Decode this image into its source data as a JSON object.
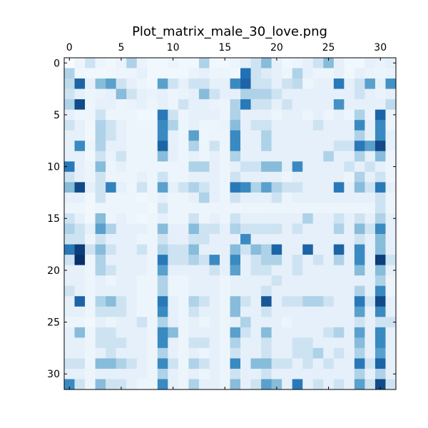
{
  "chart_data": {
    "type": "heatmap",
    "title": "Plot_matrix_male_30_love.png",
    "xlabel": "",
    "ylabel": "",
    "rows": 32,
    "cols": 32,
    "x_ticks": [
      0,
      5,
      10,
      15,
      20,
      25,
      30
    ],
    "y_ticks": [
      0,
      5,
      10,
      15,
      20,
      25,
      30
    ],
    "x_axis_position": "top",
    "colormap": "Blues",
    "color_low": "#f7fbff",
    "color_high": "#08306b",
    "value_range": [
      0,
      1
    ],
    "grid": false,
    "legend": "none",
    "values": [
      [
        0.0,
        0.06,
        0.2,
        0.06,
        0.04,
        0.08,
        0.3,
        0.08,
        0.04,
        0.04,
        0.06,
        0.04,
        0.04,
        0.3,
        0.04,
        0.04,
        0.06,
        0.1,
        0.2,
        0.4,
        0.1,
        0.04,
        0.06,
        0.1,
        0.2,
        0.4,
        0.1,
        0.04,
        0.04,
        0.1,
        0.08,
        0.1
      ],
      [
        0.3,
        0.05,
        0.04,
        0.04,
        0.05,
        0.06,
        0.06,
        0.1,
        0.04,
        0.04,
        0.04,
        0.04,
        0.08,
        0.1,
        0.06,
        0.06,
        0.04,
        0.75,
        0.2,
        0.15,
        0.1,
        0.06,
        0.3,
        0.1,
        0.06,
        0.06,
        0.1,
        0.04,
        0.1,
        0.08,
        0.06,
        0.08
      ],
      [
        0.25,
        0.8,
        0.1,
        0.4,
        0.5,
        0.2,
        0.1,
        0.06,
        0.04,
        0.5,
        0.2,
        0.1,
        0.2,
        0.2,
        0.1,
        0.1,
        0.6,
        0.8,
        0.2,
        0.2,
        0.1,
        0.2,
        0.25,
        0.06,
        0.1,
        0.1,
        0.7,
        0.1,
        0.2,
        0.5,
        0.1,
        0.55
      ],
      [
        0.2,
        0.1,
        0.06,
        0.08,
        0.1,
        0.4,
        0.2,
        0.1,
        0.08,
        0.1,
        0.06,
        0.08,
        0.1,
        0.4,
        0.2,
        0.1,
        0.1,
        0.3,
        0.3,
        0.3,
        0.2,
        0.1,
        0.1,
        0.1,
        0.1,
        0.1,
        0.1,
        0.1,
        0.2,
        0.1,
        0.08,
        0.1
      ],
      [
        0.3,
        0.9,
        0.06,
        0.1,
        0.1,
        0.06,
        0.08,
        0.1,
        0.06,
        0.1,
        0.06,
        0.2,
        0.1,
        0.1,
        0.08,
        0.06,
        0.3,
        0.7,
        0.2,
        0.2,
        0.1,
        0.2,
        0.1,
        0.1,
        0.1,
        0.1,
        0.55,
        0.1,
        0.1,
        0.1,
        0.1,
        0.25
      ],
      [
        0.1,
        0.06,
        0.06,
        0.2,
        0.06,
        0.06,
        0.06,
        0.04,
        0.04,
        0.7,
        0.2,
        0.06,
        0.1,
        0.1,
        0.1,
        0.06,
        0.3,
        0.1,
        0.1,
        0.1,
        0.06,
        0.1,
        0.1,
        0.06,
        0.1,
        0.06,
        0.1,
        0.06,
        0.3,
        0.08,
        0.8,
        0.06
      ],
      [
        0.2,
        0.1,
        0.04,
        0.3,
        0.2,
        0.1,
        0.06,
        0.06,
        0.06,
        0.6,
        0.3,
        0.06,
        0.1,
        0.06,
        0.06,
        0.08,
        0.4,
        0.1,
        0.2,
        0.2,
        0.1,
        0.1,
        0.1,
        0.1,
        0.2,
        0.1,
        0.1,
        0.1,
        0.6,
        0.1,
        0.6,
        0.06
      ],
      [
        0.1,
        0.1,
        0.04,
        0.3,
        0.2,
        0.1,
        0.06,
        0.06,
        0.06,
        0.6,
        0.1,
        0.06,
        0.5,
        0.06,
        0.06,
        0.06,
        0.6,
        0.1,
        0.1,
        0.3,
        0.1,
        0.1,
        0.1,
        0.1,
        0.1,
        0.1,
        0.1,
        0.1,
        0.3,
        0.1,
        0.6,
        0.1
      ],
      [
        0.1,
        0.6,
        0.06,
        0.3,
        0.1,
        0.1,
        0.06,
        0.06,
        0.06,
        0.8,
        0.1,
        0.06,
        0.3,
        0.06,
        0.2,
        0.06,
        0.6,
        0.1,
        0.1,
        0.3,
        0.1,
        0.1,
        0.1,
        0.1,
        0.1,
        0.1,
        0.2,
        0.2,
        0.7,
        0.5,
        0.9,
        0.1
      ],
      [
        0.1,
        0.1,
        0.04,
        0.2,
        0.08,
        0.2,
        0.06,
        0.06,
        0.06,
        0.4,
        0.1,
        0.06,
        0.1,
        0.06,
        0.1,
        0.06,
        0.3,
        0.1,
        0.1,
        0.1,
        0.1,
        0.1,
        0.1,
        0.1,
        0.1,
        0.3,
        0.1,
        0.1,
        0.3,
        0.1,
        0.4,
        0.06
      ],
      [
        0.7,
        0.1,
        0.06,
        0.4,
        0.06,
        0.1,
        0.06,
        0.06,
        0.06,
        0.06,
        0.06,
        0.06,
        0.3,
        0.3,
        0.1,
        0.06,
        0.1,
        0.2,
        0.2,
        0.4,
        0.4,
        0.1,
        0.6,
        0.1,
        0.1,
        0.1,
        0.1,
        0.2,
        0.1,
        0.2,
        0.1,
        0.06
      ],
      [
        0.2,
        0.1,
        0.06,
        0.2,
        0.06,
        0.06,
        0.06,
        0.1,
        0.06,
        0.2,
        0.06,
        0.06,
        0.1,
        0.1,
        0.1,
        0.06,
        0.2,
        0.1,
        0.1,
        0.1,
        0.1,
        0.06,
        0.1,
        0.1,
        0.1,
        0.1,
        0.1,
        0.06,
        0.3,
        0.1,
        0.2,
        0.06
      ],
      [
        0.4,
        0.9,
        0.1,
        0.2,
        0.65,
        0.1,
        0.06,
        0.2,
        0.06,
        0.5,
        0.1,
        0.2,
        0.3,
        0.2,
        0.1,
        0.06,
        0.7,
        0.6,
        0.3,
        0.5,
        0.3,
        0.2,
        0.2,
        0.1,
        0.1,
        0.1,
        0.7,
        0.1,
        0.4,
        0.2,
        0.7,
        0.1
      ],
      [
        0.1,
        0.1,
        0.04,
        0.2,
        0.06,
        0.06,
        0.06,
        0.04,
        0.06,
        0.1,
        0.06,
        0.06,
        0.1,
        0.3,
        0.1,
        0.06,
        0.2,
        0.1,
        0.1,
        0.1,
        0.2,
        0.06,
        0.1,
        0.1,
        0.1,
        0.1,
        0.1,
        0.1,
        0.1,
        0.1,
        0.2,
        0.06
      ],
      [
        0.06,
        0.06,
        0.04,
        0.06,
        0.06,
        0.06,
        0.06,
        0.06,
        0.04,
        0.2,
        0.06,
        0.06,
        0.06,
        0.06,
        0.06,
        0.06,
        0.06,
        0.06,
        0.06,
        0.06,
        0.06,
        0.06,
        0.06,
        0.06,
        0.06,
        0.06,
        0.06,
        0.06,
        0.06,
        0.06,
        0.2,
        0.06
      ],
      [
        0.2,
        0.1,
        0.04,
        0.4,
        0.06,
        0.1,
        0.06,
        0.04,
        0.06,
        0.1,
        0.06,
        0.06,
        0.2,
        0.06,
        0.1,
        0.06,
        0.2,
        0.1,
        0.1,
        0.1,
        0.1,
        0.1,
        0.1,
        0.3,
        0.1,
        0.1,
        0.2,
        0.1,
        0.2,
        0.1,
        0.3,
        0.1
      ],
      [
        0.3,
        0.2,
        0.1,
        0.5,
        0.3,
        0.1,
        0.1,
        0.1,
        0.06,
        0.4,
        0.1,
        0.1,
        0.4,
        0.2,
        0.2,
        0.1,
        0.3,
        0.2,
        0.2,
        0.2,
        0.2,
        0.1,
        0.2,
        0.1,
        0.1,
        0.1,
        0.3,
        0.1,
        0.4,
        0.2,
        0.6,
        0.1
      ],
      [
        0.2,
        0.2,
        0.06,
        0.2,
        0.1,
        0.1,
        0.1,
        0.06,
        0.06,
        0.2,
        0.1,
        0.1,
        0.2,
        0.2,
        0.1,
        0.1,
        0.1,
        0.6,
        0.1,
        0.1,
        0.1,
        0.1,
        0.1,
        0.1,
        0.1,
        0.1,
        0.1,
        0.1,
        0.2,
        0.1,
        0.4,
        0.1
      ],
      [
        0.7,
        0.95,
        0.2,
        0.4,
        0.2,
        0.1,
        0.1,
        0.2,
        0.06,
        0.3,
        0.2,
        0.2,
        0.4,
        0.1,
        0.1,
        0.1,
        0.4,
        0.2,
        0.4,
        0.3,
        0.8,
        0.1,
        0.1,
        0.8,
        0.1,
        0.1,
        0.8,
        0.1,
        0.6,
        0.1,
        0.4,
        0.1
      ],
      [
        0.2,
        1.0,
        0.06,
        0.3,
        0.1,
        0.1,
        0.1,
        0.1,
        0.06,
        0.7,
        0.2,
        0.2,
        0.3,
        0.2,
        0.6,
        0.1,
        0.6,
        0.1,
        0.2,
        0.3,
        0.3,
        0.1,
        0.2,
        0.1,
        0.2,
        0.1,
        0.3,
        0.1,
        0.6,
        0.1,
        0.95,
        0.2
      ],
      [
        0.1,
        0.1,
        0.06,
        0.3,
        0.2,
        0.1,
        0.1,
        0.1,
        0.06,
        0.5,
        0.1,
        0.1,
        0.1,
        0.1,
        0.2,
        0.1,
        0.5,
        0.1,
        0.2,
        0.2,
        0.1,
        0.1,
        0.2,
        0.1,
        0.1,
        0.1,
        0.1,
        0.1,
        0.4,
        0.1,
        0.4,
        0.1
      ],
      [
        0.1,
        0.1,
        0.06,
        0.1,
        0.06,
        0.1,
        0.1,
        0.06,
        0.06,
        0.3,
        0.06,
        0.06,
        0.1,
        0.1,
        0.1,
        0.06,
        0.1,
        0.1,
        0.1,
        0.1,
        0.2,
        0.1,
        0.1,
        0.1,
        0.1,
        0.1,
        0.1,
        0.1,
        0.1,
        0.1,
        0.3,
        0.06
      ],
      [
        0.2,
        0.1,
        0.06,
        0.1,
        0.1,
        0.1,
        0.1,
        0.06,
        0.06,
        0.3,
        0.06,
        0.06,
        0.1,
        0.1,
        0.1,
        0.06,
        0.1,
        0.1,
        0.1,
        0.2,
        0.1,
        0.1,
        0.1,
        0.1,
        0.1,
        0.1,
        0.1,
        0.1,
        0.3,
        0.1,
        0.6,
        0.06
      ],
      [
        0.1,
        0.8,
        0.06,
        0.3,
        0.4,
        0.2,
        0.1,
        0.06,
        0.06,
        0.7,
        0.1,
        0.06,
        0.3,
        0.2,
        0.1,
        0.06,
        0.4,
        0.2,
        0.1,
        0.85,
        0.1,
        0.2,
        0.2,
        0.3,
        0.3,
        0.2,
        0.1,
        0.1,
        0.7,
        0.2,
        0.9,
        0.1
      ],
      [
        0.1,
        0.1,
        0.06,
        0.2,
        0.2,
        0.2,
        0.1,
        0.06,
        0.06,
        0.6,
        0.1,
        0.06,
        0.2,
        0.1,
        0.1,
        0.06,
        0.4,
        0.1,
        0.1,
        0.2,
        0.1,
        0.1,
        0.1,
        0.1,
        0.1,
        0.1,
        0.1,
        0.1,
        0.5,
        0.1,
        0.6,
        0.1
      ],
      [
        0.06,
        0.06,
        0.04,
        0.1,
        0.06,
        0.1,
        0.1,
        0.2,
        0.06,
        0.3,
        0.1,
        0.06,
        0.1,
        0.06,
        0.1,
        0.06,
        0.1,
        0.3,
        0.1,
        0.1,
        0.1,
        0.06,
        0.1,
        0.1,
        0.1,
        0.1,
        0.1,
        0.1,
        0.2,
        0.1,
        0.2,
        0.2
      ],
      [
        0.1,
        0.4,
        0.06,
        0.2,
        0.2,
        0.1,
        0.1,
        0.1,
        0.06,
        0.6,
        0.4,
        0.06,
        0.1,
        0.1,
        0.1,
        0.06,
        0.5,
        0.2,
        0.1,
        0.4,
        0.1,
        0.1,
        0.1,
        0.1,
        0.1,
        0.2,
        0.3,
        0.1,
        0.5,
        0.1,
        0.6,
        0.1
      ],
      [
        0.1,
        0.1,
        0.06,
        0.2,
        0.2,
        0.2,
        0.1,
        0.1,
        0.06,
        0.6,
        0.1,
        0.06,
        0.2,
        0.2,
        0.1,
        0.06,
        0.3,
        0.1,
        0.1,
        0.2,
        0.1,
        0.1,
        0.2,
        0.2,
        0.1,
        0.1,
        0.1,
        0.1,
        0.4,
        0.1,
        0.6,
        0.1
      ],
      [
        0.1,
        0.1,
        0.06,
        0.1,
        0.2,
        0.1,
        0.1,
        0.1,
        0.06,
        0.3,
        0.1,
        0.06,
        0.1,
        0.06,
        0.1,
        0.06,
        0.2,
        0.1,
        0.1,
        0.2,
        0.1,
        0.1,
        0.2,
        0.2,
        0.3,
        0.1,
        0.2,
        0.1,
        0.3,
        0.1,
        0.5,
        0.1
      ],
      [
        0.2,
        0.2,
        0.06,
        0.4,
        0.4,
        0.3,
        0.2,
        0.1,
        0.06,
        0.6,
        0.2,
        0.06,
        0.3,
        0.2,
        0.1,
        0.06,
        0.6,
        0.1,
        0.4,
        0.4,
        0.2,
        0.2,
        0.1,
        0.2,
        0.1,
        0.2,
        0.1,
        0.1,
        0.7,
        0.2,
        0.8,
        0.1
      ],
      [
        0.1,
        0.1,
        0.06,
        0.1,
        0.1,
        0.1,
        0.1,
        0.1,
        0.06,
        0.3,
        0.1,
        0.06,
        0.1,
        0.06,
        0.1,
        0.06,
        0.2,
        0.1,
        0.1,
        0.2,
        0.1,
        0.1,
        0.1,
        0.1,
        0.1,
        0.1,
        0.1,
        0.1,
        0.3,
        0.1,
        0.3,
        0.1
      ],
      [
        0.6,
        0.2,
        0.06,
        0.4,
        0.2,
        0.2,
        0.1,
        0.06,
        0.06,
        0.6,
        0.1,
        0.06,
        0.3,
        0.1,
        0.1,
        0.06,
        0.4,
        0.1,
        0.2,
        0.5,
        0.4,
        0.1,
        0.7,
        0.1,
        0.2,
        0.1,
        0.2,
        0.1,
        0.5,
        0.2,
        0.9,
        0.2
      ]
    ]
  }
}
